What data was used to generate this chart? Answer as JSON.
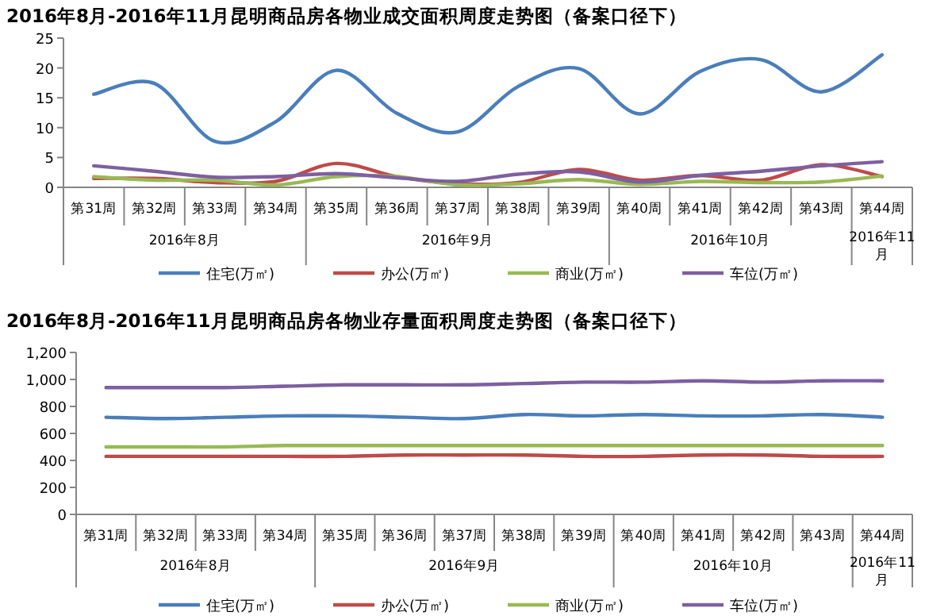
{
  "chart_data": [
    {
      "type": "line",
      "title": "2016年8月-2016年11月昆明商品房各物业成交面积周度走势图（备案口径下）",
      "categories": [
        "第31周",
        "第32周",
        "第33周",
        "第34周",
        "第35周",
        "第36周",
        "第37周",
        "第38周",
        "第39周",
        "第40周",
        "第41周",
        "第42周",
        "第43周",
        "第44周"
      ],
      "annotations": [
        "2016年8月",
        "2016年9月",
        "2016年10月",
        "2016年11月"
      ],
      "series": [
        {
          "name": "住宅(万㎡)",
          "color": "#4a7ebb",
          "values": [
            15.6,
            17.4,
            7.7,
            11,
            19.6,
            12.4,
            9.3,
            16.9,
            19.9,
            12.3,
            19.4,
            21.4,
            16,
            22.2
          ]
        },
        {
          "name": "办公(万㎡)",
          "color": "#be4b48",
          "values": [
            1.5,
            1.5,
            0.8,
            1.0,
            4.0,
            1.8,
            0.6,
            0.8,
            3.0,
            1.2,
            2.0,
            1.2,
            3.8,
            1.8
          ]
        },
        {
          "name": "商业(万㎡)",
          "color": "#98b954",
          "values": [
            1.8,
            1.2,
            1.2,
            0.4,
            1.8,
            1.8,
            0.4,
            0.6,
            1.3,
            0.5,
            1.0,
            0.8,
            0.9,
            1.9
          ]
        },
        {
          "name": "车位(万㎡)",
          "color": "#7d60a0",
          "values": [
            3.6,
            2.7,
            1.7,
            1.8,
            2.3,
            1.6,
            1.0,
            2.2,
            2.6,
            0.9,
            2.0,
            2.7,
            3.6,
            4.3
          ]
        }
      ],
      "ylim": [
        0,
        25
      ],
      "yticks": [
        0,
        5,
        10,
        15,
        20,
        25
      ],
      "legend": "bottom",
      "grid": false
    },
    {
      "type": "line",
      "title": "2016年8月-2016年11月昆明商品房各物业存量面积周度走势图（备案口径下）",
      "categories": [
        "第31周",
        "第32周",
        "第33周",
        "第34周",
        "第35周",
        "第36周",
        "第37周",
        "第38周",
        "第39周",
        "第40周",
        "第41周",
        "第42周",
        "第43周",
        "第44周"
      ],
      "annotations": [
        "2016年8月",
        "2016年9月",
        "2016年10月",
        "2016年11月"
      ],
      "series": [
        {
          "name": "住宅(万㎡)",
          "color": "#4a7ebb",
          "values": [
            720,
            710,
            720,
            730,
            730,
            720,
            710,
            740,
            730,
            740,
            730,
            730,
            740,
            720
          ]
        },
        {
          "name": "办公(万㎡)",
          "color": "#be4b48",
          "values": [
            430,
            430,
            430,
            430,
            430,
            440,
            440,
            440,
            430,
            430,
            440,
            440,
            430,
            430
          ]
        },
        {
          "name": "商业(万㎡)",
          "color": "#98b954",
          "values": [
            500,
            500,
            500,
            510,
            510,
            510,
            510,
            510,
            510,
            510,
            510,
            510,
            510,
            510
          ]
        },
        {
          "name": "车位(万㎡)",
          "color": "#7d60a0",
          "values": [
            940,
            940,
            940,
            950,
            960,
            960,
            960,
            970,
            980,
            980,
            990,
            980,
            990,
            990
          ]
        }
      ],
      "ylim": [
        0,
        1200
      ],
      "yticks": [
        {
          "value": 0,
          "label": "0"
        },
        {
          "value": 200,
          "label": "200"
        },
        {
          "value": 400,
          "label": "400"
        },
        {
          "value": 600,
          "label": "600"
        },
        {
          "value": 800,
          "label": "800"
        },
        {
          "value": 1000,
          "label": "1,000"
        },
        {
          "value": 1200,
          "label": "1,200"
        }
      ],
      "legend": "bottom",
      "grid": false
    }
  ]
}
